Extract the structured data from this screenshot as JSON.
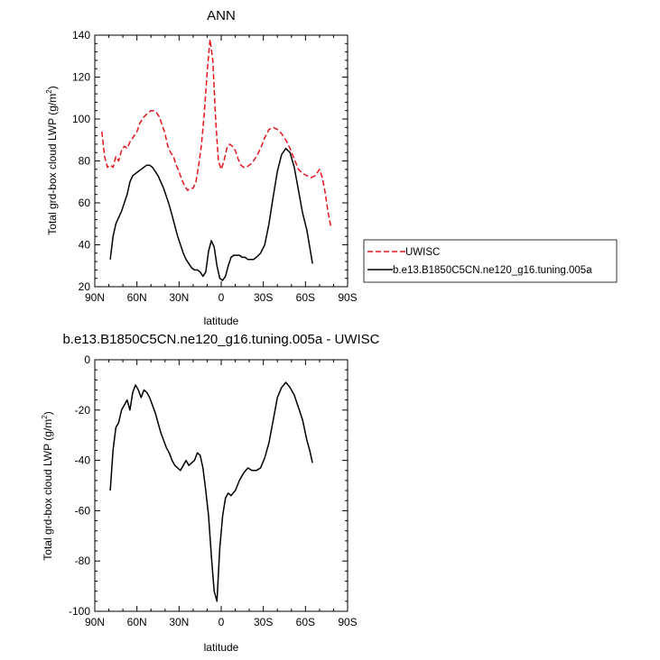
{
  "chart_data": [
    {
      "type": "line",
      "title": "ANN",
      "xlabel": "latitude",
      "ylabel": "Total grd-box cloud LWP (g/m",
      "ylabel_sup": "2",
      "ylabel_end": ")",
      "xlim": [
        90,
        -90
      ],
      "ylim": [
        20,
        140
      ],
      "xticks": [
        90,
        60,
        30,
        0,
        -30,
        -60,
        -90
      ],
      "xtick_labels": [
        "90N",
        "60N",
        "30N",
        "0",
        "30S",
        "60S",
        "90S"
      ],
      "yticks": [
        20,
        40,
        60,
        80,
        100,
        120,
        140
      ],
      "ytick_labels": [
        "20",
        "40",
        "60",
        "80",
        "100",
        "120",
        "140"
      ],
      "grid": false,
      "legend_position": "right-bottom-outside",
      "series": [
        {
          "name": "UWISC",
          "color": "#e8141e",
          "style": "dashed",
          "x": [
            85,
            83,
            81,
            79,
            77,
            75,
            73,
            71,
            69,
            67,
            65,
            62,
            60,
            58,
            55,
            52,
            50,
            48,
            46,
            44,
            42,
            40,
            38,
            36,
            34,
            32,
            30,
            28,
            26,
            24,
            22,
            20,
            18,
            16,
            14,
            12,
            10,
            8,
            6,
            4,
            2,
            0,
            -2,
            -4,
            -6,
            -8,
            -10,
            -12,
            -14,
            -16,
            -18,
            -20,
            -22,
            -25,
            -28,
            -31,
            -34,
            -37,
            -40,
            -43,
            -46,
            -49,
            -52,
            -55,
            -58,
            -61,
            -64,
            -67,
            -70,
            -72,
            -74,
            -76,
            -78
          ],
          "y": [
            94,
            82,
            77,
            78,
            77,
            82,
            80,
            85,
            87,
            86,
            89,
            92,
            94,
            98,
            101,
            103,
            104,
            104,
            103,
            101,
            97,
            93,
            87,
            84,
            82,
            78,
            75,
            71,
            68,
            66,
            67,
            67,
            70,
            78,
            88,
            103,
            122,
            138,
            128,
            100,
            80,
            76,
            80,
            86,
            88,
            87,
            85,
            81,
            78,
            77,
            77,
            78,
            79,
            82,
            86,
            91,
            95,
            96,
            95,
            93,
            90,
            86,
            81,
            76,
            74,
            73,
            72,
            73,
            76,
            72,
            65,
            56,
            49
          ]
        },
        {
          "name": "b.e13.B1850C5CN.ne120_g16.tuning.005a",
          "color": "#000000",
          "style": "solid",
          "x": [
            79,
            77,
            75,
            73,
            71,
            69,
            67,
            65,
            63,
            61,
            59,
            57,
            55,
            53,
            51,
            49,
            47,
            45,
            43,
            41,
            39,
            37,
            35,
            33,
            31,
            29,
            27,
            25,
            23,
            21,
            19,
            17,
            15,
            13,
            11,
            9,
            7,
            5,
            3,
            1,
            -1,
            -3,
            -5,
            -7,
            -9,
            -11,
            -13,
            -15,
            -17,
            -19,
            -21,
            -23,
            -25,
            -28,
            -31,
            -34,
            -37,
            -40,
            -43,
            -46,
            -49,
            -52,
            -55,
            -58,
            -61,
            -63,
            -65
          ],
          "y": [
            33,
            44,
            50,
            53,
            56,
            60,
            64,
            70,
            73,
            74,
            75,
            76,
            77,
            78,
            78,
            77,
            75,
            73,
            70,
            67,
            63,
            59,
            54,
            49,
            44,
            40,
            36,
            33,
            31,
            29,
            28,
            28,
            27,
            25,
            27,
            37,
            42,
            39,
            30,
            24,
            23,
            25,
            30,
            34,
            35,
            35,
            35,
            34,
            34,
            33,
            33,
            33,
            34,
            36,
            40,
            50,
            63,
            75,
            83,
            86,
            84,
            77,
            66,
            55,
            47,
            39,
            31
          ]
        }
      ]
    },
    {
      "type": "line",
      "title": "b.e13.B1850C5CN.ne120_g16.tuning.005a - UWISC",
      "xlabel": "latitude",
      "ylabel": "Total grd-box cloud LWP (g/m",
      "ylabel_sup": "2",
      "ylabel_end": ")",
      "xlim": [
        90,
        -90
      ],
      "ylim": [
        -100,
        0
      ],
      "xticks": [
        90,
        60,
        30,
        0,
        -30,
        -60,
        -90
      ],
      "xtick_labels": [
        "90N",
        "60N",
        "30N",
        "0",
        "30S",
        "60S",
        "90S"
      ],
      "yticks": [
        -100,
        -80,
        -60,
        -40,
        -20,
        0
      ],
      "ytick_labels": [
        "-100",
        "-80",
        "-60",
        "-40",
        "-20",
        "0"
      ],
      "grid": false,
      "series": [
        {
          "color": "#000000",
          "style": "solid",
          "x": [
            79,
            77,
            75,
            73,
            71,
            69,
            67,
            65,
            63,
            61,
            59,
            57,
            55,
            53,
            51,
            49,
            47,
            45,
            43,
            41,
            39,
            37,
            35,
            33,
            31,
            29,
            27,
            25,
            23,
            21,
            19,
            17,
            15,
            13,
            11,
            9,
            7,
            5,
            3,
            1,
            -1,
            -3,
            -5,
            -7,
            -10,
            -13,
            -16,
            -19,
            -22,
            -25,
            -28,
            -31,
            -34,
            -37,
            -40,
            -43,
            -46,
            -49,
            -52,
            -55,
            -58,
            -61,
            -63,
            -65
          ],
          "y": [
            -52,
            -36,
            -27,
            -25,
            -20,
            -18,
            -16,
            -20,
            -13,
            -10,
            -12,
            -15,
            -12,
            -13,
            -15,
            -18,
            -21,
            -25,
            -29,
            -32,
            -35,
            -37,
            -40,
            -42,
            -43,
            -44,
            -42,
            -40,
            -42,
            -41,
            -40,
            -37,
            -38,
            -43,
            -52,
            -62,
            -78,
            -92,
            -96,
            -75,
            -62,
            -55,
            -53,
            -54,
            -52,
            -48,
            -45,
            -43,
            -44,
            -44,
            -43,
            -39,
            -33,
            -24,
            -15,
            -11,
            -9,
            -11,
            -14,
            -19,
            -24,
            -32,
            -36,
            -41
          ]
        }
      ]
    }
  ]
}
